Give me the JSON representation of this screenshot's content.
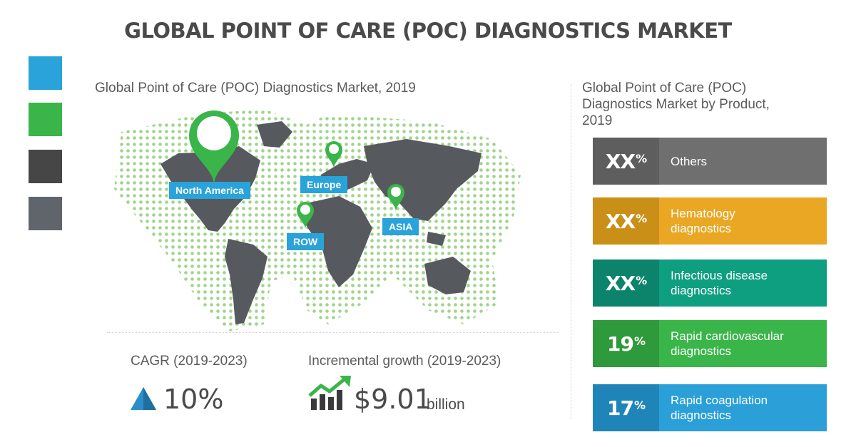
{
  "title": "GLOBAL POINT OF CARE (POC) DIAGNOSTICS MARKET",
  "colors": {
    "blue": "#29a3d9",
    "green": "#3ab54a",
    "dark_gray": "#464646",
    "gray": "#60646b",
    "map_land": "#56595d",
    "map_dots": "#9fd48a"
  },
  "map": {
    "title": "Global Point of Care (POC) Diagnostics Market, 2019",
    "regions": [
      "North America",
      "Europe",
      "ROW",
      "ASIA"
    ]
  },
  "cagr": {
    "label": "CAGR (2019-2023)",
    "value": "10%"
  },
  "growth": {
    "label": "Incremental growth (2019-2023)",
    "value": "$9.01",
    "unit": "billion"
  },
  "products": {
    "title": [
      "Global Point of Care (POC)",
      "Diagnostics Market by Product,",
      "2019"
    ],
    "items": [
      {
        "pct": "XX",
        "sym": "%",
        "label": [
          "Others"
        ],
        "color": "#6f6f6f"
      },
      {
        "pct": "XX",
        "sym": "%",
        "label": [
          "Hematology",
          "diagnostics"
        ],
        "color": "#eaa724"
      },
      {
        "pct": "XX",
        "sym": "%",
        "label": [
          "Infectious disease",
          "diagnostics"
        ],
        "color": "#0e9f80"
      },
      {
        "pct": "19",
        "sym": "%",
        "label": [
          "Rapid cardiovascular",
          "diagnostics"
        ],
        "color": "#3ab54a"
      },
      {
        "pct": "17",
        "sym": "%",
        "label": [
          "Rapid coagulation",
          "diagnostics"
        ],
        "color": "#2a9fd8"
      }
    ]
  }
}
